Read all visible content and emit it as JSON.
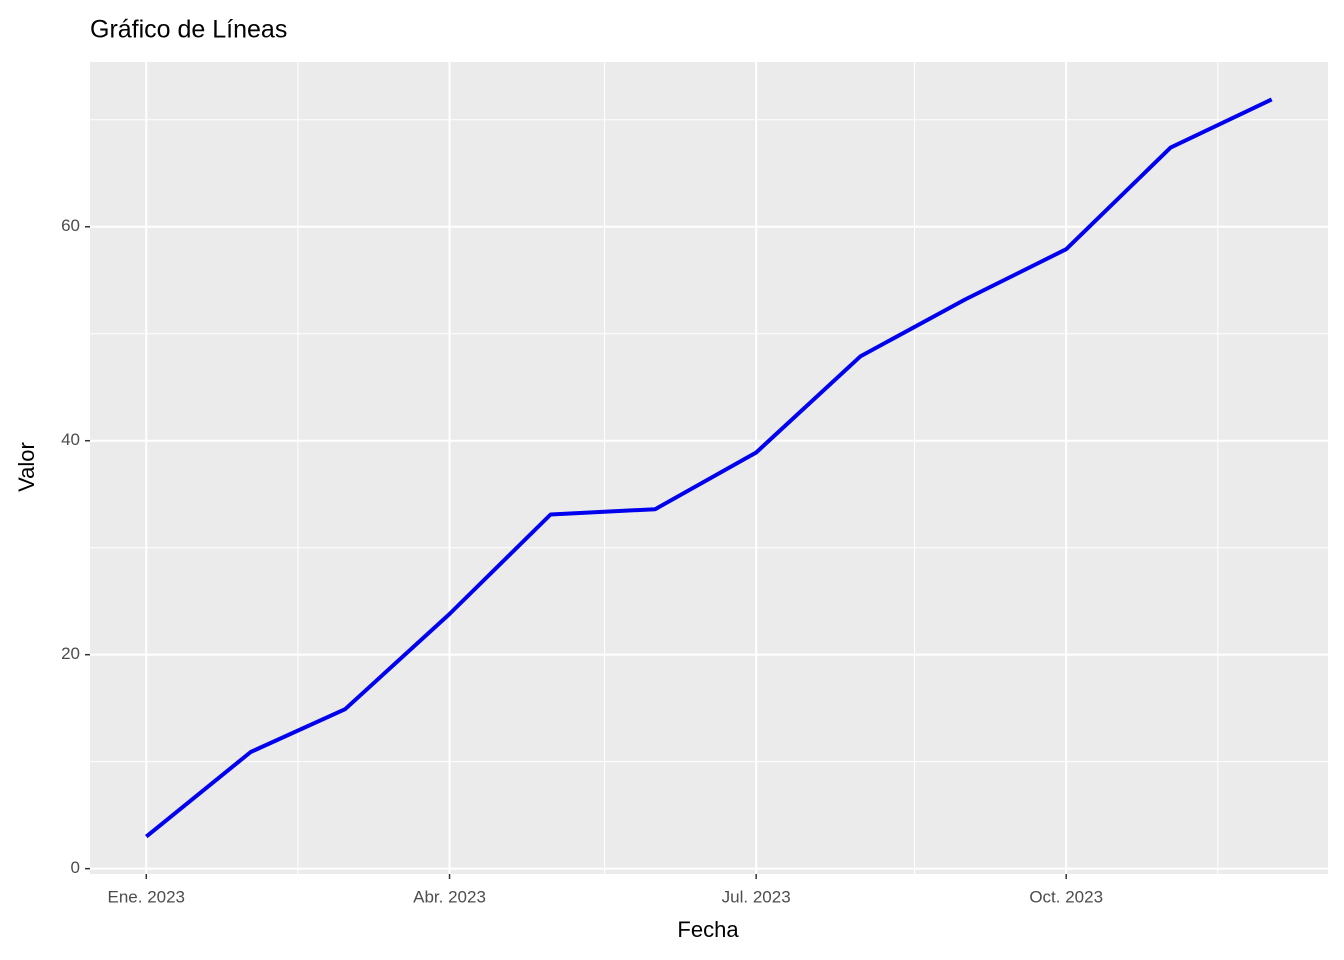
{
  "chart_data": {
    "type": "line",
    "title": "Gráfico de Líneas",
    "x_label": "Fecha",
    "y_label": "Valor",
    "x": [
      "2023-01",
      "2023-02",
      "2023-03",
      "2023-04",
      "2023-05",
      "2023-06",
      "2023-07",
      "2023-08",
      "2023-09",
      "2023-10",
      "2023-11",
      "2023-12"
    ],
    "series": [
      {
        "color": "#0000ee",
        "values": [
          3.0,
          10.9,
          14.9,
          23.8,
          33.1,
          33.6,
          38.9,
          47.9,
          53.2,
          57.9,
          67.4,
          71.9
        ]
      }
    ],
    "ylim": [
      -0.5,
      75.4
    ],
    "yticks": [
      0,
      20,
      40,
      60
    ],
    "xticks": [
      {
        "value": "2023-01",
        "label": "Ene. 2023"
      },
      {
        "value": "2023-04",
        "label": "Abr. 2023"
      },
      {
        "value": "2023-07",
        "label": "Jul. 2023"
      },
      {
        "value": "2023-10",
        "label": "Oct. 2023"
      }
    ],
    "grid": true
  }
}
